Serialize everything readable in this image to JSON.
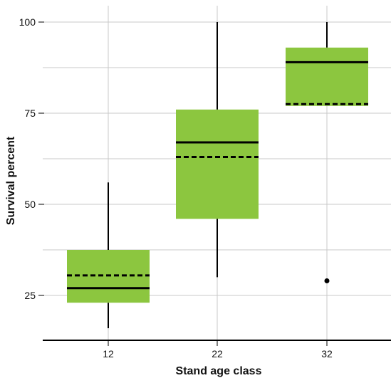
{
  "chart_data": {
    "type": "box",
    "title": "",
    "xlabel": "Stand age class",
    "ylabel": "Survival percent",
    "categories": [
      "12",
      "22",
      "32"
    ],
    "ylim": [
      16,
      102
    ],
    "yticks": [
      25,
      50,
      75,
      100
    ],
    "grid": true,
    "box_color": "#8cc63f",
    "median_style": "solid",
    "mean_style": "dashed",
    "boxes": [
      {
        "category": "12",
        "whisker_low": 16,
        "q1": 23,
        "median": 27,
        "mean": 30.5,
        "q3": 37.5,
        "whisker_high": 56,
        "outliers": []
      },
      {
        "category": "22",
        "whisker_low": 30,
        "q1": 46,
        "median": 67,
        "mean": 63,
        "q3": 76,
        "whisker_high": 100,
        "outliers": []
      },
      {
        "category": "32",
        "whisker_low": 77,
        "q1": 77,
        "median": 89,
        "mean": 77.5,
        "q3": 93,
        "whisker_high": 100,
        "outliers": [
          29
        ]
      }
    ]
  }
}
